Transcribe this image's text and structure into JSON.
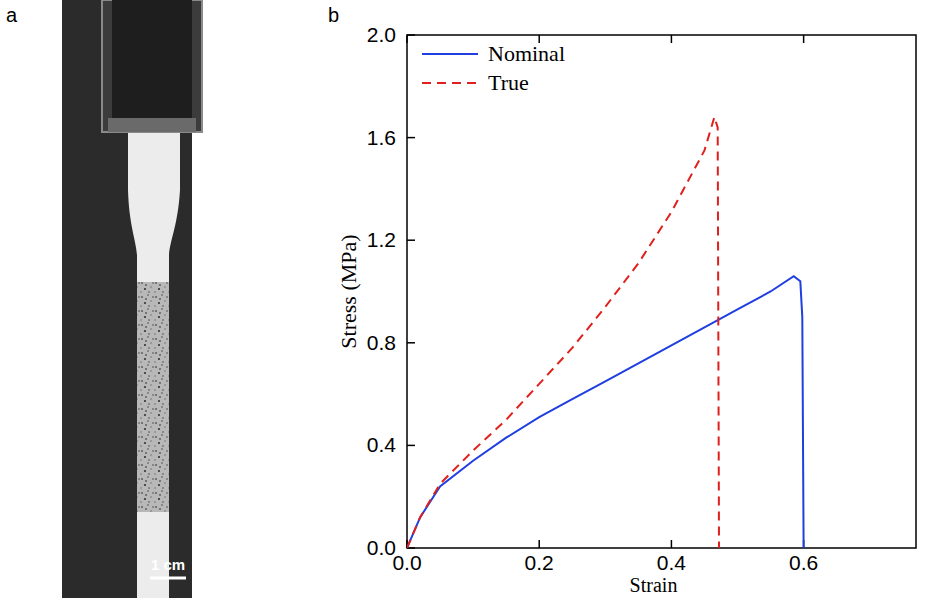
{
  "panel_labels": [
    "a",
    "b"
  ],
  "photo": {
    "scale_bar_label": "1 cm"
  },
  "chart_data": {
    "type": "line",
    "xlabel": "Strain",
    "ylabel": "Stress (MPa)",
    "xlim": [
      0,
      0.77
    ],
    "ylim": [
      0,
      2.0
    ],
    "xticks": [
      {
        "value": 0,
        "label": "0.0"
      },
      0.2,
      0.4,
      0.6
    ],
    "yticks": [
      {
        "value": 0,
        "label": "0.0"
      },
      0.4,
      0.8,
      1.2,
      1.6,
      {
        "value": 2,
        "label": "2.0"
      }
    ],
    "grid": false,
    "legend": "upper left",
    "series": [
      {
        "name": "Nominal",
        "color": "#1f3fe0",
        "line_style": "solid",
        "x": [
          0,
          0.02,
          0.05,
          0.1,
          0.15,
          0.2,
          0.25,
          0.3,
          0.35,
          0.4,
          0.45,
          0.5,
          0.55,
          0.585,
          0.595,
          0.598,
          0.6
        ],
        "values": [
          0,
          0.12,
          0.24,
          0.34,
          0.43,
          0.51,
          0.58,
          0.65,
          0.72,
          0.79,
          0.86,
          0.93,
          1.0,
          1.06,
          1.04,
          0.9,
          0
        ]
      },
      {
        "name": "True",
        "color": "#e0201c",
        "line_style": "dashed",
        "x": [
          0,
          0.02,
          0.05,
          0.1,
          0.15,
          0.2,
          0.25,
          0.3,
          0.35,
          0.4,
          0.45,
          0.465,
          0.47,
          0.472
        ],
        "values": [
          0,
          0.12,
          0.25,
          0.38,
          0.5,
          0.64,
          0.78,
          0.94,
          1.11,
          1.31,
          1.55,
          1.68,
          1.64,
          0
        ]
      }
    ]
  }
}
